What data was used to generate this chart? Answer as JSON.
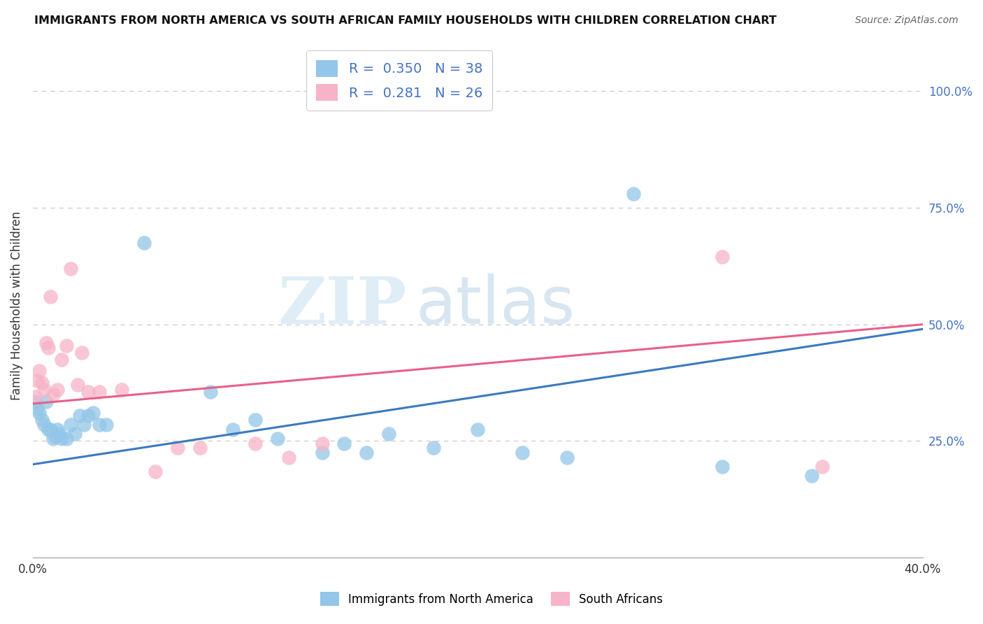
{
  "title": "IMMIGRANTS FROM NORTH AMERICA VS SOUTH AFRICAN FAMILY HOUSEHOLDS WITH CHILDREN CORRELATION CHART",
  "source": "Source: ZipAtlas.com",
  "ylabel": "Family Households with Children",
  "xlim": [
    0.0,
    0.4
  ],
  "ylim": [
    0.0,
    1.08
  ],
  "yticks": [
    0.0,
    0.25,
    0.5,
    0.75,
    1.0
  ],
  "ytick_labels": [
    "",
    "25.0%",
    "50.0%",
    "75.0%",
    "100.0%"
  ],
  "xticks": [
    0.0,
    0.1,
    0.2,
    0.3,
    0.4
  ],
  "xtick_labels": [
    "0.0%",
    "",
    "",
    "",
    "40.0%"
  ],
  "blue_R": 0.35,
  "blue_N": 38,
  "pink_R": 0.281,
  "pink_N": 26,
  "blue_color": "#93c6e8",
  "pink_color": "#f7b3c8",
  "blue_line_color": "#3a7abf",
  "pink_line_color": "#e8608a",
  "legend_label_blue": "Immigrants from North America",
  "legend_label_pink": "South Africans",
  "watermark_zip": "ZIP",
  "watermark_atlas": "atlas",
  "blue_scatter_x": [
    0.001,
    0.002,
    0.003,
    0.004,
    0.005,
    0.006,
    0.007,
    0.008,
    0.009,
    0.01,
    0.011,
    0.012,
    0.013,
    0.015,
    0.017,
    0.019,
    0.021,
    0.023,
    0.025,
    0.027,
    0.03,
    0.033,
    0.05,
    0.08,
    0.09,
    0.1,
    0.11,
    0.13,
    0.14,
    0.15,
    0.16,
    0.18,
    0.2,
    0.22,
    0.24,
    0.27,
    0.31,
    0.35
  ],
  "blue_scatter_y": [
    0.335,
    0.32,
    0.31,
    0.295,
    0.285,
    0.335,
    0.275,
    0.275,
    0.255,
    0.26,
    0.275,
    0.265,
    0.255,
    0.255,
    0.285,
    0.265,
    0.305,
    0.285,
    0.305,
    0.31,
    0.285,
    0.285,
    0.675,
    0.355,
    0.275,
    0.295,
    0.255,
    0.225,
    0.245,
    0.225,
    0.265,
    0.235,
    0.275,
    0.225,
    0.215,
    0.78,
    0.195,
    0.175
  ],
  "pink_scatter_x": [
    0.001,
    0.002,
    0.003,
    0.004,
    0.005,
    0.006,
    0.007,
    0.008,
    0.009,
    0.011,
    0.013,
    0.015,
    0.017,
    0.02,
    0.022,
    0.025,
    0.03,
    0.04,
    0.055,
    0.065,
    0.075,
    0.1,
    0.115,
    0.13,
    0.31,
    0.355
  ],
  "pink_scatter_y": [
    0.345,
    0.38,
    0.4,
    0.375,
    0.36,
    0.46,
    0.45,
    0.56,
    0.35,
    0.36,
    0.425,
    0.455,
    0.62,
    0.37,
    0.44,
    0.355,
    0.355,
    0.36,
    0.185,
    0.235,
    0.235,
    0.245,
    0.215,
    0.245,
    0.645,
    0.195
  ]
}
